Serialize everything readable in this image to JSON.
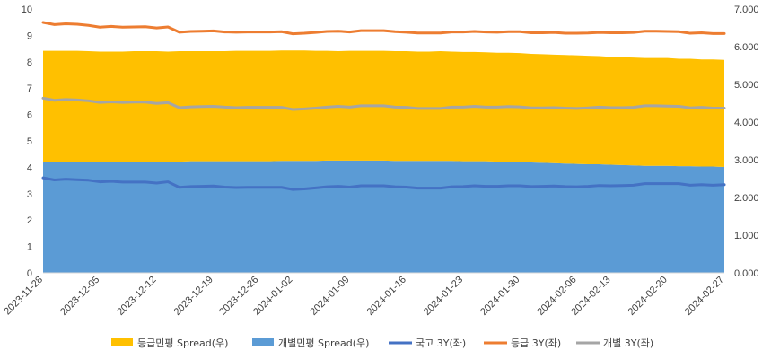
{
  "chart_data": {
    "type": "area+line",
    "title": "",
    "x": [
      "2023-11-28",
      "2023-11-29",
      "2023-11-30",
      "2023-12-01",
      "2023-12-04",
      "2023-12-05",
      "2023-12-06",
      "2023-12-07",
      "2023-12-08",
      "2023-12-11",
      "2023-12-12",
      "2023-12-13",
      "2023-12-14",
      "2023-12-15",
      "2023-12-18",
      "2023-12-19",
      "2023-12-20",
      "2023-12-21",
      "2023-12-22",
      "2023-12-26",
      "2023-12-27",
      "2023-12-28",
      "2024-01-02",
      "2024-01-03",
      "2024-01-04",
      "2024-01-05",
      "2024-01-08",
      "2024-01-09",
      "2024-01-10",
      "2024-01-11",
      "2024-01-12",
      "2024-01-15",
      "2024-01-16",
      "2024-01-17",
      "2024-01-18",
      "2024-01-19",
      "2024-01-22",
      "2024-01-23",
      "2024-01-24",
      "2024-01-25",
      "2024-01-26",
      "2024-01-29",
      "2024-01-30",
      "2024-01-31",
      "2024-02-01",
      "2024-02-02",
      "2024-02-05",
      "2024-02-06",
      "2024-02-07",
      "2024-02-08",
      "2024-02-13",
      "2024-02-14",
      "2024-02-15",
      "2024-02-16",
      "2024-02-19",
      "2024-02-20",
      "2024-02-21",
      "2024-02-22",
      "2024-02-23",
      "2024-02-26",
      "2024-02-27"
    ],
    "x_tick_labels": [
      "2023-11-28",
      "2023-12-05",
      "2023-12-12",
      "2023-12-19",
      "2023-12-26",
      "2024-01-02",
      "2024-01-09",
      "2024-01-16",
      "2024-01-23",
      "2024-01-30",
      "2024-02-06",
      "2024-02-13",
      "2024-02-20",
      "2024-02-27"
    ],
    "y_left": {
      "min": 0,
      "max": 10,
      "step": 1,
      "tick_labels": [
        "0",
        "1",
        "2",
        "3",
        "4",
        "5",
        "6",
        "7",
        "8",
        "9",
        "10"
      ]
    },
    "y_right": {
      "min": 0,
      "max": 7,
      "step": 1,
      "tick_labels": [
        "0.000",
        "1.000",
        "2.000",
        "3.000",
        "4.000",
        "5.000",
        "6.000",
        "7.000"
      ]
    },
    "series": [
      {
        "name": "등급민평 Spread(우)",
        "kind": "area",
        "axis": "right",
        "stacked": true,
        "color": "#FFC000",
        "values": [
          2.95,
          2.95,
          2.95,
          2.95,
          2.95,
          2.94,
          2.94,
          2.94,
          2.94,
          2.94,
          2.93,
          2.92,
          2.93,
          2.92,
          2.92,
          2.92,
          2.92,
          2.93,
          2.93,
          2.93,
          2.93,
          2.93,
          2.93,
          2.93,
          2.92,
          2.91,
          2.9,
          2.91,
          2.91,
          2.91,
          2.91,
          2.91,
          2.91,
          2.9,
          2.9,
          2.91,
          2.9,
          2.9,
          2.9,
          2.89,
          2.89,
          2.89,
          2.89,
          2.88,
          2.88,
          2.88,
          2.88,
          2.88,
          2.88,
          2.87,
          2.86,
          2.86,
          2.86,
          2.86,
          2.86,
          2.86,
          2.85,
          2.85,
          2.84,
          2.84,
          2.84
        ]
      },
      {
        "name": "개별민평 Spread(우)",
        "kind": "area",
        "axis": "right",
        "stacked": true,
        "color": "#5B9BD5",
        "values": [
          2.94,
          2.94,
          2.94,
          2.94,
          2.93,
          2.93,
          2.93,
          2.93,
          2.94,
          2.94,
          2.95,
          2.95,
          2.95,
          2.96,
          2.96,
          2.96,
          2.96,
          2.96,
          2.96,
          2.96,
          2.96,
          2.97,
          2.97,
          2.97,
          2.97,
          2.98,
          2.98,
          2.98,
          2.98,
          2.98,
          2.98,
          2.97,
          2.97,
          2.97,
          2.97,
          2.97,
          2.97,
          2.96,
          2.96,
          2.96,
          2.95,
          2.95,
          2.94,
          2.93,
          2.92,
          2.91,
          2.9,
          2.89,
          2.88,
          2.88,
          2.87,
          2.86,
          2.85,
          2.84,
          2.84,
          2.84,
          2.83,
          2.83,
          2.82,
          2.82,
          2.81
        ]
      },
      {
        "name": "국고 3Y(좌)",
        "kind": "line",
        "axis": "left",
        "color": "#4472C4",
        "values": [
          3.6,
          3.52,
          3.55,
          3.53,
          3.51,
          3.45,
          3.47,
          3.44,
          3.44,
          3.44,
          3.4,
          3.45,
          3.24,
          3.27,
          3.28,
          3.29,
          3.25,
          3.23,
          3.24,
          3.24,
          3.24,
          3.24,
          3.16,
          3.18,
          3.22,
          3.26,
          3.28,
          3.25,
          3.3,
          3.3,
          3.3,
          3.26,
          3.25,
          3.21,
          3.21,
          3.21,
          3.26,
          3.27,
          3.3,
          3.28,
          3.28,
          3.3,
          3.3,
          3.27,
          3.28,
          3.29,
          3.27,
          3.26,
          3.28,
          3.31,
          3.3,
          3.31,
          3.32,
          3.38,
          3.38,
          3.38,
          3.38,
          3.32,
          3.34,
          3.32,
          3.34
        ]
      },
      {
        "name": "등급 3Y(좌)",
        "kind": "line",
        "axis": "left",
        "color": "#ED7D31",
        "values": [
          9.49,
          9.41,
          9.44,
          9.42,
          9.38,
          9.31,
          9.34,
          9.31,
          9.32,
          9.33,
          9.28,
          9.32,
          9.12,
          9.15,
          9.16,
          9.17,
          9.13,
          9.12,
          9.13,
          9.13,
          9.13,
          9.14,
          9.06,
          9.08,
          9.11,
          9.15,
          9.16,
          9.13,
          9.18,
          9.18,
          9.18,
          9.14,
          9.12,
          9.09,
          9.09,
          9.09,
          9.13,
          9.13,
          9.15,
          9.13,
          9.12,
          9.14,
          9.14,
          9.1,
          9.1,
          9.11,
          9.08,
          9.08,
          9.09,
          9.11,
          9.1,
          9.1,
          9.11,
          9.16,
          9.16,
          9.15,
          9.14,
          9.08,
          9.1,
          9.07,
          9.07
        ]
      },
      {
        "name": "개별 3Y(좌)",
        "kind": "line",
        "axis": "left",
        "color": "#A5A5A5",
        "values": [
          6.62,
          6.54,
          6.57,
          6.55,
          6.52,
          6.46,
          6.48,
          6.46,
          6.47,
          6.47,
          6.42,
          6.45,
          6.26,
          6.29,
          6.3,
          6.31,
          6.28,
          6.26,
          6.27,
          6.27,
          6.27,
          6.27,
          6.19,
          6.21,
          6.24,
          6.28,
          6.31,
          6.28,
          6.33,
          6.33,
          6.33,
          6.28,
          6.27,
          6.23,
          6.23,
          6.23,
          6.28,
          6.28,
          6.31,
          6.28,
          6.28,
          6.3,
          6.29,
          6.25,
          6.25,
          6.26,
          6.24,
          6.23,
          6.25,
          6.28,
          6.26,
          6.26,
          6.27,
          6.33,
          6.33,
          6.32,
          6.31,
          6.25,
          6.27,
          6.24,
          6.24
        ]
      }
    ],
    "legend": {
      "position": "bottom"
    },
    "grid": false
  }
}
